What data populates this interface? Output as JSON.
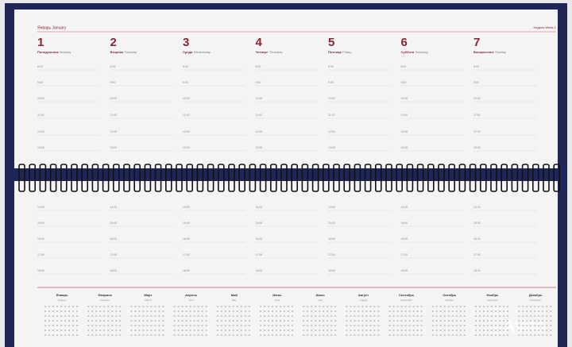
{
  "header": {
    "month": "Январь January",
    "week": "Неделя Week 1"
  },
  "days": [
    {
      "number": 1,
      "name_ru": "Понедельник",
      "name_en": "Monday"
    },
    {
      "number": 2,
      "name_ru": "Вторник",
      "name_en": "Tuesday"
    },
    {
      "number": 3,
      "name_ru": "Среда",
      "name_en": "Wednesday"
    },
    {
      "number": 4,
      "name_ru": "Четверг",
      "name_en": "Thursday"
    },
    {
      "number": 5,
      "name_ru": "Пятница",
      "name_en": "Friday"
    },
    {
      "number": 6,
      "name_ru": "Суббота",
      "name_en": "Saturday"
    },
    {
      "number": 7,
      "name_ru": "Воскресенье",
      "name_en": "Sunday"
    }
  ],
  "times_top": [
    "8:00",
    "9:00",
    "10:00",
    "11:00",
    "12:00",
    "13:00"
  ],
  "times_bottom": [
    "14:00",
    "15:00",
    "16:00",
    "17:00",
    "18:00"
  ],
  "months": [
    {
      "ru": "Январь",
      "en": "January"
    },
    {
      "ru": "Февраль",
      "en": "February"
    },
    {
      "ru": "Март",
      "en": "March"
    },
    {
      "ru": "Апрель",
      "en": "April"
    },
    {
      "ru": "Май",
      "en": "May"
    },
    {
      "ru": "Июнь",
      "en": "June"
    },
    {
      "ru": "Июль",
      "en": "July"
    },
    {
      "ru": "Август",
      "en": "August"
    },
    {
      "ru": "Сентябрь",
      "en": "September"
    },
    {
      "ru": "Октябрь",
      "en": "October"
    },
    {
      "ru": "Ноябрь",
      "en": "November"
    },
    {
      "ru": "Декабрь",
      "en": "December"
    }
  ],
  "watermark": "Avito"
}
